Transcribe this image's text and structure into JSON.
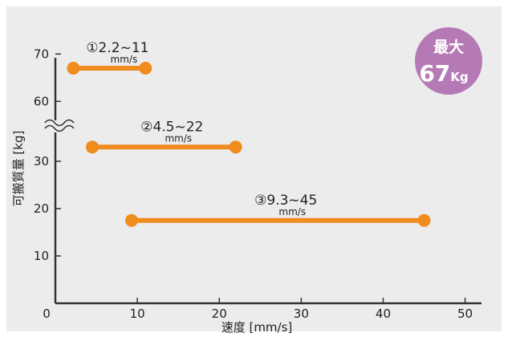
{
  "chart_data": {
    "type": "line",
    "title": "",
    "xlabel": "速度 [mm/s]",
    "ylabel": "可搬質量 [kg]",
    "xlim": [
      0,
      52
    ],
    "x_ticks": [
      "0",
      "10",
      "20",
      "30",
      "40",
      "50"
    ],
    "y_ticks": [
      "10",
      "20",
      "30",
      "60",
      "70"
    ],
    "axis_break": "between 30 and 60",
    "grid": false,
    "series": [
      {
        "label": "①2.2~11",
        "unit": "mm/s",
        "x": [
          2.2,
          11
        ],
        "y": [
          67,
          67
        ]
      },
      {
        "label": "②4.5~22",
        "unit": "mm/s",
        "x": [
          4.5,
          22
        ],
        "y": [
          33,
          33
        ]
      },
      {
        "label": "③9.3~45",
        "unit": "mm/s",
        "x": [
          9.3,
          45
        ],
        "y": [
          17.5,
          17.5
        ]
      }
    ],
    "badge": {
      "line1": "最大",
      "value": "67",
      "unit": "Kg"
    },
    "colors": {
      "background": "#ececec",
      "series": "#f08c1e",
      "axis": "#333333",
      "badge": "#b57ab5"
    }
  }
}
